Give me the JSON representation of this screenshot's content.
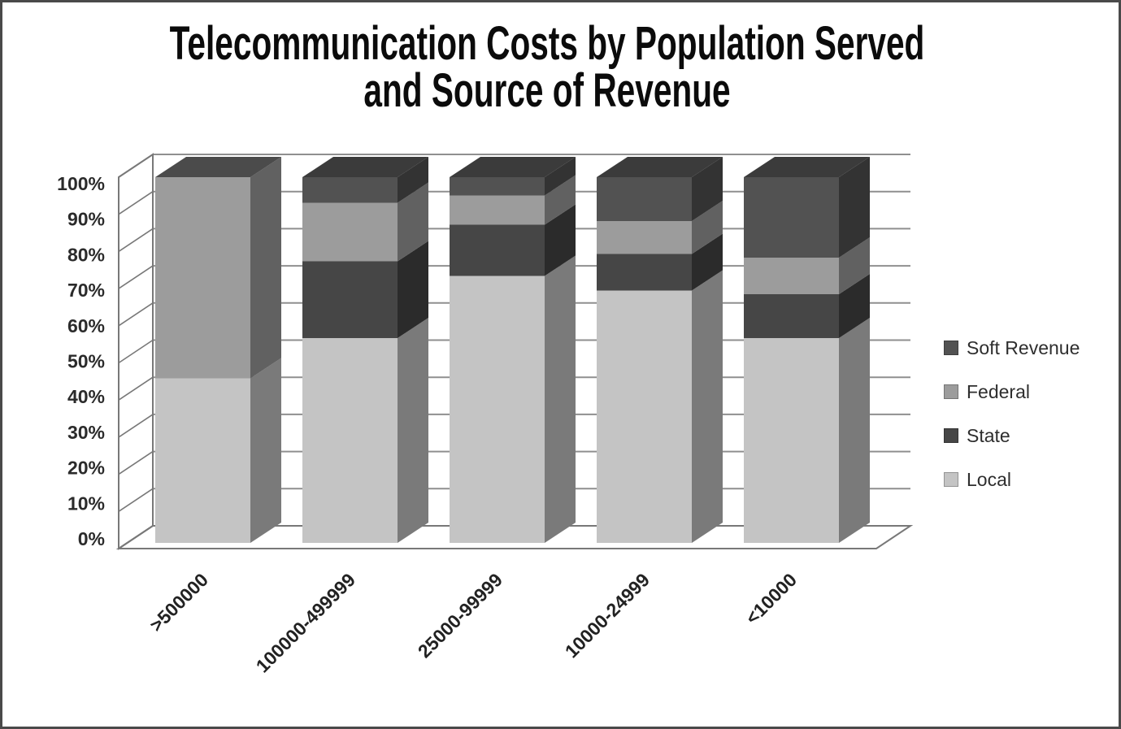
{
  "chart_data": {
    "type": "bar",
    "subtype": "stacked-100-percent-3d-column",
    "title": "Telecommunication Costs by Population Served and Source of Revenue",
    "title_lines": [
      "Telecommunication Costs by Population Served",
      "and Source of Revenue"
    ],
    "categories": [
      ">500000",
      "100000-499999",
      "25000-99999",
      "10000-24999",
      "<10000"
    ],
    "series": [
      {
        "name": "Soft Revenue",
        "color": "#525252",
        "values": [
          0,
          7,
          5,
          12,
          22
        ]
      },
      {
        "name": "Federal",
        "color": "#9c9c9c",
        "values": [
          55,
          16,
          8,
          9,
          10
        ]
      },
      {
        "name": "State",
        "color": "#464646",
        "values": [
          0,
          21,
          14,
          10,
          12
        ]
      },
      {
        "name": "Local",
        "color": "#c4c4c4",
        "values": [
          45,
          56,
          73,
          69,
          56
        ]
      }
    ],
    "y_axis": {
      "min": 0,
      "max": 100,
      "tick_step": 10,
      "tick_labels": [
        "0%",
        "10%",
        "20%",
        "30%",
        "40%",
        "50%",
        "60%",
        "70%",
        "80%",
        "90%",
        "100%"
      ]
    },
    "legend_position": "right",
    "grid": true,
    "grid_color": "#8f8f8f",
    "axis_line_color": "#787878",
    "text_color": "#2b2b2b"
  }
}
